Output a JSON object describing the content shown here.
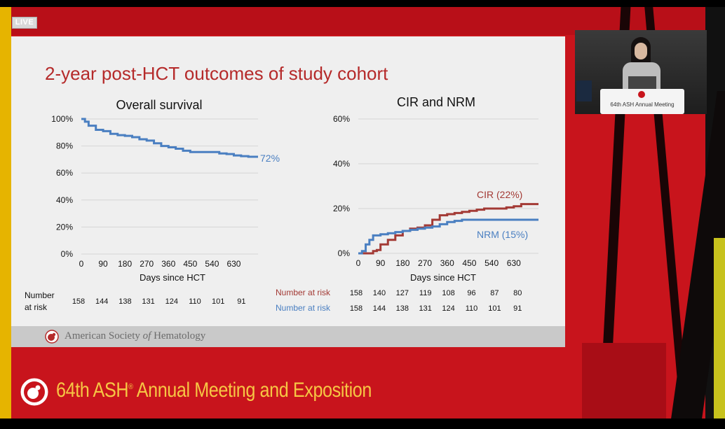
{
  "live_badge": "LIVE",
  "slide": {
    "title": "2-year post-HCT outcomes of study cohort",
    "footer_text_a": "American Society ",
    "footer_text_b": "of",
    "footer_text_c": " Hematology"
  },
  "os_chart": {
    "title": "Overall survival",
    "xlabel": "Days since HCT",
    "yticks": [
      "0%",
      "20%",
      "40%",
      "60%",
      "80%",
      "100%"
    ],
    "xticks": [
      "0",
      "90",
      "180",
      "270",
      "360",
      "450",
      "540",
      "630"
    ],
    "end_label": "72%",
    "risk_label_1": "Number",
    "risk_label_2": "at risk",
    "risk_values": [
      "158",
      "144",
      "138",
      "131",
      "124",
      "110",
      "101",
      "91"
    ]
  },
  "cir_chart": {
    "title": "CIR and NRM",
    "xlabel": "Days since HCT",
    "yticks": [
      "0%",
      "20%",
      "40%",
      "60%"
    ],
    "xticks": [
      "0",
      "90",
      "180",
      "270",
      "360",
      "450",
      "540",
      "630"
    ],
    "cir_label": "CIR (22%)",
    "nrm_label": "NRM (15%)",
    "risk_label": "Number at risk",
    "risk_values_cir": [
      "158",
      "140",
      "127",
      "119",
      "108",
      "96",
      "87",
      "80"
    ],
    "risk_values_nrm": [
      "158",
      "144",
      "138",
      "131",
      "124",
      "110",
      "101",
      "91"
    ]
  },
  "chart_data": [
    {
      "type": "line",
      "title": "Overall survival",
      "xlabel": "Days since HCT",
      "ylabel": "",
      "xlim": [
        0,
        730
      ],
      "ylim": [
        0,
        100
      ],
      "series": [
        {
          "name": "72%",
          "color": "#4a7fc1",
          "x": [
            0,
            15,
            30,
            60,
            90,
            120,
            150,
            180,
            210,
            240,
            270,
            300,
            330,
            360,
            390,
            420,
            450,
            480,
            510,
            540,
            570,
            600,
            630,
            660,
            690,
            730
          ],
          "y": [
            100,
            98,
            95,
            92,
            91,
            89,
            88,
            87.5,
            86.5,
            85,
            84,
            82,
            80,
            79,
            78,
            76.5,
            75.5,
            75.5,
            75.5,
            75.5,
            74.5,
            74,
            73,
            72.5,
            72,
            72
          ]
        }
      ]
    },
    {
      "type": "line",
      "title": "CIR and NRM",
      "xlabel": "Days since HCT",
      "ylabel": "",
      "xlim": [
        0,
        730
      ],
      "ylim": [
        0,
        60
      ],
      "series": [
        {
          "name": "CIR (22%)",
          "color": "#a33a35",
          "x": [
            0,
            45,
            60,
            75,
            90,
            120,
            150,
            180,
            210,
            240,
            270,
            300,
            330,
            360,
            390,
            420,
            450,
            480,
            510,
            540,
            570,
            600,
            630,
            660,
            690,
            730
          ],
          "y": [
            0,
            0,
            1,
            1.5,
            4,
            6,
            8,
            10,
            11,
            11.5,
            12.5,
            15,
            17,
            17.5,
            18,
            18.5,
            19,
            19.5,
            20,
            20,
            20,
            20.5,
            21,
            22,
            22,
            22
          ]
        },
        {
          "name": "NRM (15%)",
          "color": "#4a7fc1",
          "x": [
            0,
            15,
            30,
            45,
            60,
            90,
            120,
            150,
            180,
            210,
            240,
            270,
            300,
            330,
            360,
            390,
            420,
            450,
            480,
            510,
            540,
            570,
            600,
            630,
            660,
            690,
            730
          ],
          "y": [
            0,
            1,
            4,
            6,
            8,
            8.5,
            9,
            9.5,
            10,
            10.5,
            11,
            11.5,
            12,
            13,
            14,
            14.5,
            15,
            15,
            15,
            15,
            15,
            15,
            15,
            15,
            15,
            15,
            15
          ]
        }
      ]
    }
  ],
  "webcam": {
    "podium_text": "64th ASH Annual Meeting"
  },
  "banner": {
    "text_a": "64th ASH",
    "text_reg": "®",
    "text_b": " Annual Meeting and Exposition"
  },
  "colors": {
    "background": "#c8141c",
    "title": "#b52a2a",
    "banner_text": "#f6c644",
    "os_line": "#4a7fc1",
    "cir_line": "#a33a35",
    "nrm_line": "#4a7fc1"
  }
}
